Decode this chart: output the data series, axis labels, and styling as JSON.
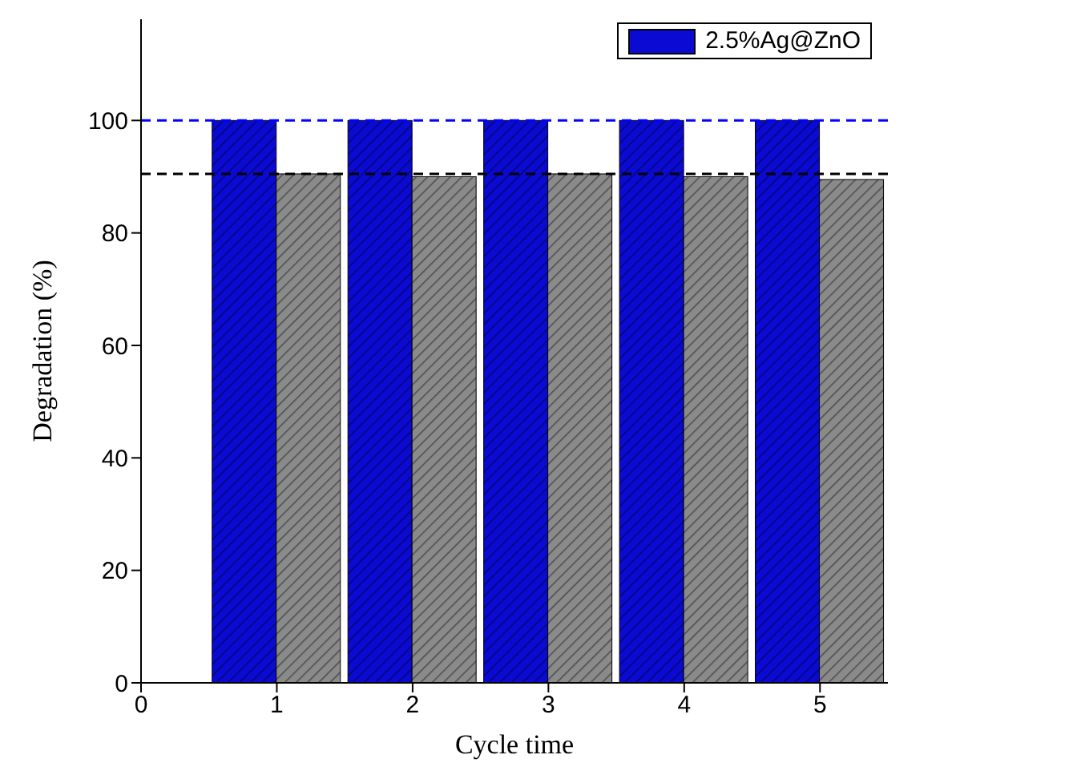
{
  "chart_data": {
    "type": "bar",
    "xlabel": "Cycle time",
    "ylabel": "Degradation (%)",
    "x": [
      1,
      2,
      3,
      4,
      5
    ],
    "series": [
      {
        "name": "2.5%Ag@ZnO",
        "color": "#0a0ad2",
        "values": [
          100,
          100,
          100,
          100,
          100
        ]
      },
      {
        "color": "#8a8a8a",
        "values": [
          90.5,
          90,
          90.5,
          90,
          89.5
        ]
      }
    ],
    "xlim": [
      0,
      5.5
    ],
    "xticks": [
      0,
      1,
      2,
      3,
      4,
      5
    ],
    "ylim": [
      0,
      118
    ],
    "yticks": [
      0,
      20,
      40,
      60,
      80,
      100
    ],
    "ref_lines": [
      {
        "axis": "y",
        "value": 100,
        "color": "#0000ff",
        "line_style": "dashed"
      },
      {
        "axis": "y",
        "value": 90.5,
        "color": "#000000",
        "line_style": "dashed"
      }
    ],
    "legend": "top right",
    "grid": false
  }
}
